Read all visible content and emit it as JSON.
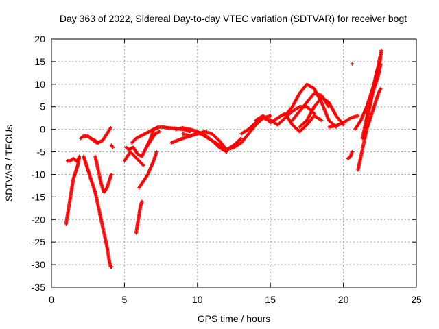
{
  "chart_data": {
    "type": "scatter",
    "title": "Day 363 of 2022, Sidereal Day-to-day VTEC variation (SDTVAR) for receiver bogt",
    "xlabel": "GPS time / hours",
    "ylabel": "SDTVAR / TECUs",
    "xlim": [
      0,
      25
    ],
    "ylim": [
      -35,
      20
    ],
    "xticks": [
      0,
      5,
      10,
      15,
      20,
      25
    ],
    "yticks": [
      -35,
      -30,
      -25,
      -20,
      -15,
      -10,
      -5,
      0,
      5,
      10,
      15,
      20
    ],
    "grid": true,
    "marker": "+",
    "color": "#ff0000",
    "series": [
      {
        "x": [
          1.0,
          1.1,
          1.2,
          1.3,
          1.4,
          1.5,
          1.6,
          1.7,
          1.8,
          1.9
        ],
        "y": [
          -21,
          -19,
          -17,
          -15,
          -13,
          -11,
          -10,
          -9,
          -8,
          -6
        ]
      },
      {
        "x": [
          1.1,
          1.3,
          1.5,
          1.7,
          1.9
        ],
        "y": [
          -7,
          -7,
          -6.5,
          -7,
          -6.5
        ]
      },
      {
        "x": [
          2.2,
          2.3,
          2.4,
          2.5,
          2.6,
          2.8,
          3.0,
          3.2,
          3.4,
          3.6,
          3.8,
          3.95,
          4.05,
          4.15
        ],
        "y": [
          -6,
          -7,
          -8,
          -9,
          -10,
          -12,
          -14,
          -17,
          -20,
          -23,
          -26,
          -29,
          -30.5,
          -30.5
        ]
      },
      {
        "x": [
          2.5,
          2.7,
          2.9,
          3.1,
          3.3,
          3.5,
          3.7,
          3.9,
          4.05
        ],
        "y": [
          -1.5,
          -2,
          -2.5,
          -3,
          -2.8,
          -2.5,
          -1.5,
          -0.5,
          0.3
        ]
      },
      {
        "x": [
          2.0,
          2.2,
          2.4,
          2.6,
          2.8,
          3.0,
          3.2
        ],
        "y": [
          -2,
          -1.5,
          -1.5,
          -1.8,
          -2.2,
          -2.5,
          -3
        ]
      },
      {
        "x": [
          3.0,
          3.2,
          3.4,
          3.6,
          3.8,
          4.0,
          4.1
        ],
        "y": [
          -6,
          -9,
          -12,
          -14,
          -13,
          -11,
          -10
        ]
      },
      {
        "x": [
          4.1,
          4.2
        ],
        "y": [
          -3.5,
          -4
        ]
      },
      {
        "x": [
          5.1,
          5.3,
          5.6,
          5.9,
          6.2,
          6.5,
          6.8,
          7.1,
          7.4
        ],
        "y": [
          -4,
          -4.5,
          -4,
          -5.5,
          -6,
          -4,
          -2.5,
          -1,
          -0.5
        ]
      },
      {
        "x": [
          5.0,
          5.2,
          5.4,
          5.7,
          6.0,
          6.3
        ],
        "y": [
          -7,
          -6,
          -5,
          -6,
          -7,
          -8
        ]
      },
      {
        "x": [
          5.8,
          5.9,
          6.0,
          6.1,
          6.2
        ],
        "y": [
          -23,
          -21,
          -19,
          -17,
          -16
        ]
      },
      {
        "x": [
          6.0,
          6.2,
          6.4,
          6.6,
          6.8,
          7.0,
          7.2
        ],
        "y": [
          -13,
          -12,
          -11,
          -10,
          -8.5,
          -7,
          -5
        ]
      },
      {
        "x": [
          6.5,
          6.8,
          7.0,
          7.3,
          7.6,
          8.0,
          8.5,
          9.0,
          9.5
        ],
        "y": [
          -4,
          -2,
          0,
          0.5,
          0.5,
          0.3,
          0.2,
          0,
          -0.5
        ]
      },
      {
        "x": [
          5.5,
          5.8,
          6.1,
          6.4,
          6.7,
          7.0,
          7.3
        ],
        "y": [
          -3,
          -2,
          -1.5,
          -1,
          -0.5,
          0,
          0.3
        ]
      },
      {
        "x": [
          8.2,
          8.6,
          9.0,
          9.5,
          10.0,
          10.5,
          11.0,
          11.5,
          12.0,
          12.5,
          13.0
        ],
        "y": [
          -3,
          -2.5,
          -2,
          -1.5,
          -1,
          -0.5,
          -1,
          -2.5,
          -4.5,
          -3.5,
          -2
        ]
      },
      {
        "x": [
          8.5,
          9.0,
          9.5,
          10.0,
          10.5,
          11.0,
          11.5,
          12.0,
          12.5,
          13.0,
          13.5,
          14.0,
          14.5,
          15.0
        ],
        "y": [
          0,
          0.3,
          0,
          -0.5,
          -1.5,
          -2.5,
          -3.5,
          -4.5,
          -4,
          -3,
          -1,
          1,
          2.5,
          3
        ]
      },
      {
        "x": [
          9.0,
          9.5,
          10.0,
          10.5,
          11.0,
          11.5,
          12.0
        ],
        "y": [
          -1,
          -1.5,
          -0.8,
          -1.2,
          -2.5,
          -4,
          -5
        ]
      },
      {
        "x": [
          13.0,
          13.5,
          14.0,
          14.5,
          15.0,
          15.5,
          16.0,
          16.5,
          17.0,
          17.5,
          18.0
        ],
        "y": [
          -1,
          0,
          1.5,
          2.5,
          2,
          1,
          2.5,
          4,
          5,
          5,
          3.5
        ]
      },
      {
        "x": [
          14.0,
          14.5,
          15.0,
          15.5,
          16.0,
          16.5,
          17.0,
          17.5,
          18.0,
          18.5
        ],
        "y": [
          2,
          3,
          1.5,
          2.5,
          3.5,
          1,
          -0.5,
          1,
          3,
          2
        ]
      },
      {
        "x": [
          16.0,
          16.5,
          17.0,
          17.5,
          18.0,
          18.5,
          19.0,
          19.5
        ],
        "y": [
          3,
          5,
          8,
          10,
          9,
          6,
          2,
          0.5
        ]
      },
      {
        "x": [
          16.5,
          17.0,
          17.5,
          18.0,
          18.5,
          19.0
        ],
        "y": [
          2,
          4,
          6,
          8,
          7.5,
          5
        ]
      },
      {
        "x": [
          17.0,
          17.5,
          18.0,
          18.5,
          19.0,
          19.5,
          20.0
        ],
        "y": [
          0.5,
          2,
          5,
          7,
          6,
          3,
          1
        ]
      },
      {
        "x": [
          19.0,
          19.5,
          20.0,
          20.5,
          21.0
        ],
        "y": [
          0.5,
          0.8,
          1.5,
          2.5,
          3
        ]
      },
      {
        "x": [
          20.3,
          20.5,
          20.6
        ],
        "y": [
          -6.5,
          -6,
          -5
        ]
      },
      {
        "x": [
          20.6
        ],
        "y": [
          14.5
        ]
      },
      {
        "x": [
          20.8,
          21.0,
          21.2,
          21.4,
          21.6,
          21.8,
          22.0,
          22.2,
          22.4,
          22.5
        ],
        "y": [
          0,
          1,
          2,
          3.5,
          5,
          7,
          9,
          11,
          14,
          16
        ]
      },
      {
        "x": [
          21.0,
          21.2,
          21.4,
          21.6,
          21.8,
          22.0,
          22.2,
          22.4,
          22.55
        ],
        "y": [
          -9,
          -6,
          -3,
          0,
          2,
          4,
          6,
          8,
          9
        ]
      },
      {
        "x": [
          21.3,
          21.5,
          21.7,
          21.9,
          22.1,
          22.3,
          22.5,
          22.6
        ],
        "y": [
          -2,
          1,
          4,
          7,
          10,
          13,
          15,
          17.5
        ]
      },
      {
        "x": [
          21.6,
          21.8,
          22.0,
          22.2,
          22.4,
          22.55
        ],
        "y": [
          2,
          5,
          8,
          10,
          12,
          14.5
        ]
      }
    ]
  }
}
